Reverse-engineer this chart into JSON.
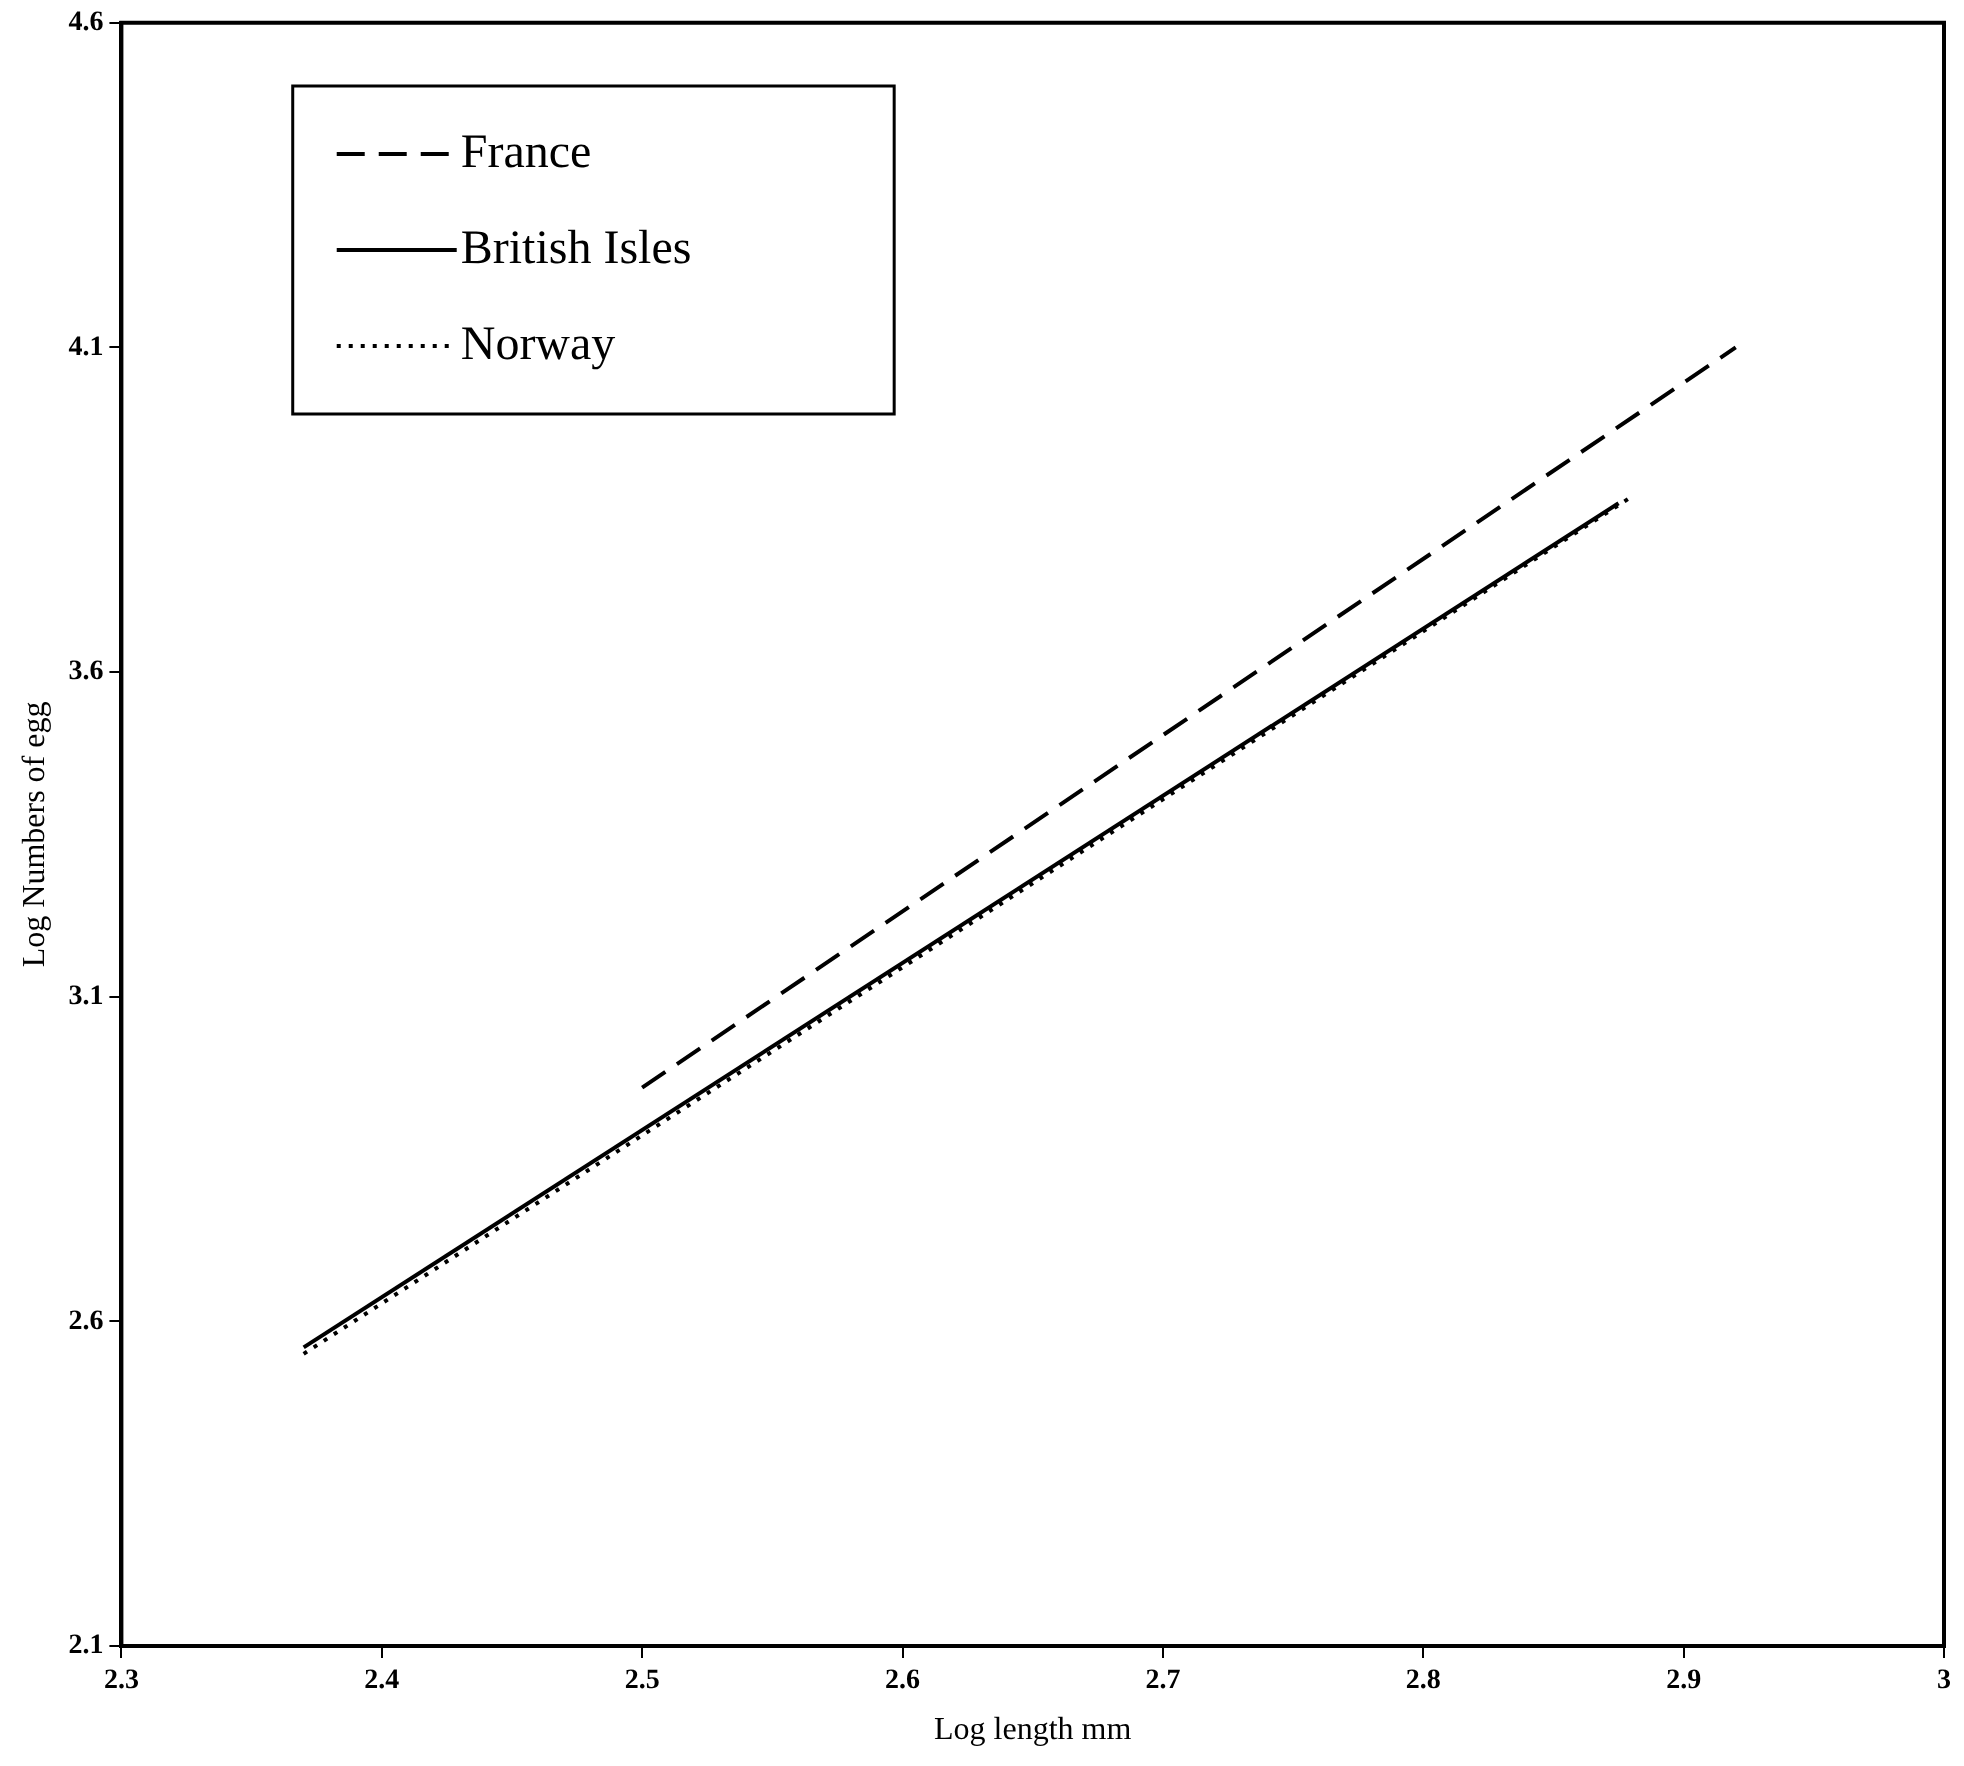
{
  "chart_data": {
    "type": "line",
    "xlabel": "Log length mm",
    "ylabel": "Log Numbers of egg",
    "xlim": [
      2.3,
      3
    ],
    "xticks": [
      2.3,
      2.4,
      2.5,
      2.6,
      2.7,
      2.8,
      2.9,
      3
    ],
    "ylim": [
      2.1,
      4.6
    ],
    "yticks": [
      2.1,
      2.6,
      3.1,
      3.6,
      4.1,
      4.6
    ],
    "grid": false,
    "legend": "top left",
    "marker": "none",
    "series": [
      {
        "name": "France",
        "color": "#000000",
        "line_style": "dashed",
        "x": [
          2.5,
          2.92
        ],
        "values": [
          2.96,
          4.1
        ]
      },
      {
        "name": "British Isles",
        "color": "#000000",
        "line_style": "solid",
        "x": [
          2.37,
          2.875
        ],
        "values": [
          2.56,
          3.86
        ]
      },
      {
        "name": "Norway",
        "color": "#000000",
        "line_style": "dotted",
        "x": [
          2.37,
          2.88
        ],
        "values": [
          2.55,
          3.87
        ]
      }
    ]
  }
}
